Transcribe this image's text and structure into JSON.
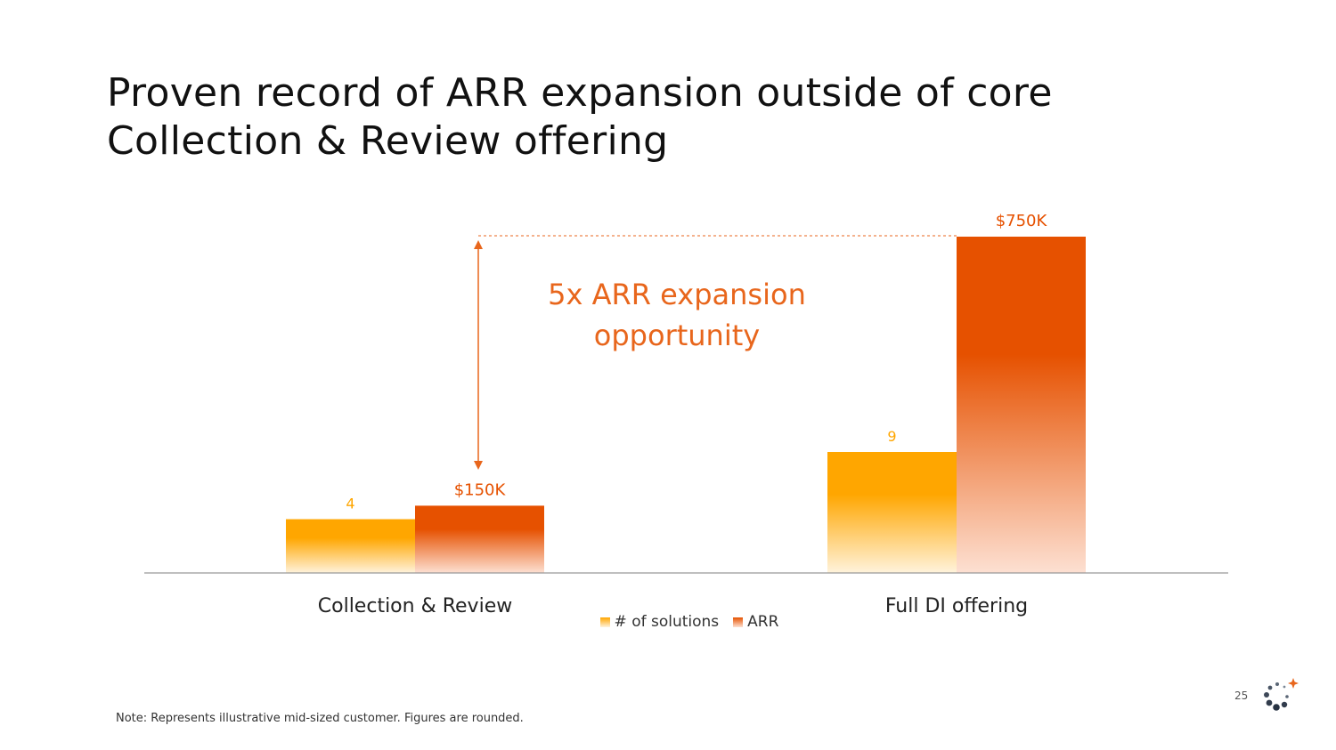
{
  "title": {
    "line1": "Proven record of ARR expansion outside of core",
    "line2": "Collection & Review offering"
  },
  "annotation": {
    "line1": "5x ARR expansion",
    "line2": "opportunity"
  },
  "footer": {
    "note": "Note: Represents illustrative mid-sized customer. Figures are rounded.",
    "page_number": "25"
  },
  "colors": {
    "solutions": "#ffa600",
    "arr": "#e65100",
    "annotation": "#e8661c",
    "axis": "#999999"
  },
  "chart_data": {
    "type": "bar",
    "categories": [
      "Collection & Review",
      "Full DI offering"
    ],
    "series": [
      {
        "name": "# of solutions",
        "values": [
          4,
          9
        ],
        "labels": [
          "4",
          "9"
        ]
      },
      {
        "name": "ARR",
        "values": [
          150,
          750
        ],
        "labels": [
          "$150K",
          "$750K"
        ]
      }
    ],
    "legend": "bottom-center",
    "grid": false
  }
}
